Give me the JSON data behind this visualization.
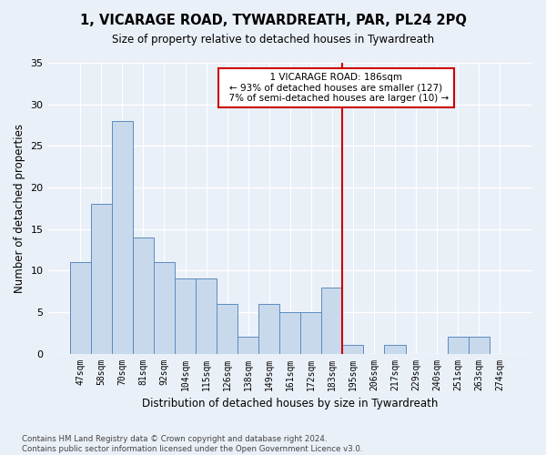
{
  "title": "1, VICARAGE ROAD, TYWARDREATH, PAR, PL24 2PQ",
  "subtitle": "Size of property relative to detached houses in Tywardreath",
  "xlabel": "Distribution of detached houses by size in Tywardreath",
  "ylabel": "Number of detached properties",
  "bar_color": "#c9d9ec",
  "bar_edge_color": "#5b8bbf",
  "background_color": "#eaf0f8",
  "grid_color": "#ffffff",
  "categories": [
    "47sqm",
    "58sqm",
    "70sqm",
    "81sqm",
    "92sqm",
    "104sqm",
    "115sqm",
    "126sqm",
    "138sqm",
    "149sqm",
    "161sqm",
    "172sqm",
    "183sqm",
    "195sqm",
    "206sqm",
    "217sqm",
    "229sqm",
    "240sqm",
    "251sqm",
    "263sqm",
    "274sqm"
  ],
  "values": [
    11,
    18,
    28,
    14,
    11,
    9,
    9,
    6,
    2,
    6,
    5,
    5,
    8,
    1,
    0,
    1,
    0,
    0,
    2,
    2,
    0
  ],
  "marker_bin": "183sqm",
  "marker_label": "1 VICARAGE ROAD: 186sqm",
  "marker_pct_smaller": "93%",
  "marker_count_smaller": 127,
  "marker_pct_larger": "7%",
  "marker_count_larger": 10,
  "marker_color": "#cc0000",
  "ylim": [
    0,
    35
  ],
  "yticks": [
    0,
    5,
    10,
    15,
    20,
    25,
    30,
    35
  ],
  "footnote1": "Contains HM Land Registry data © Crown copyright and database right 2024.",
  "footnote2": "Contains public sector information licensed under the Open Government Licence v3.0."
}
